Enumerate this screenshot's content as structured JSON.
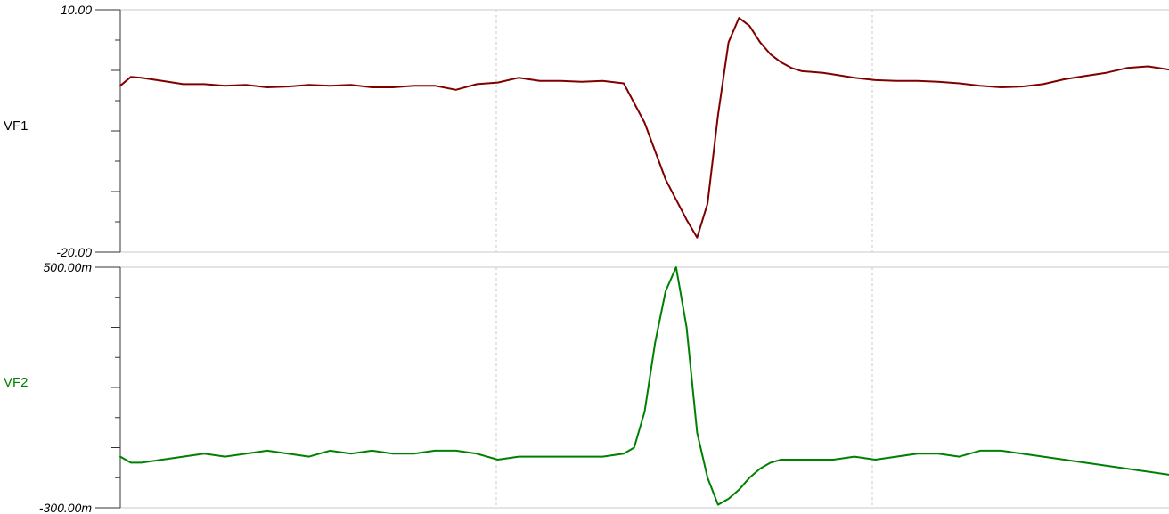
{
  "chart_data": [
    {
      "type": "line",
      "title": "",
      "series": [
        {
          "name": "VF1",
          "color": "#800000",
          "x": [
            0,
            1,
            2,
            4,
            6,
            8,
            10,
            12,
            14,
            16,
            18,
            20,
            22,
            24,
            26,
            28,
            30,
            32,
            34,
            36,
            38,
            40,
            42,
            44,
            46,
            48,
            50,
            52,
            54,
            55,
            56,
            57,
            58,
            59,
            60,
            61,
            62,
            63,
            64,
            65,
            66,
            67,
            68,
            70,
            72,
            74,
            76,
            78,
            80,
            82,
            84,
            86,
            88,
            90,
            92,
            94,
            96,
            98,
            100
          ],
          "values": [
            0.6,
            1.7,
            1.6,
            1.2,
            0.8,
            0.8,
            0.6,
            0.7,
            0.4,
            0.5,
            0.7,
            0.6,
            0.7,
            0.4,
            0.4,
            0.6,
            0.6,
            0.1,
            0.8,
            1.0,
            1.6,
            1.2,
            1.2,
            1.1,
            1.2,
            0.9,
            -4.0,
            -11.0,
            -16.0,
            -18.2,
            -14.0,
            -3.0,
            6.0,
            9.0,
            8.0,
            6.0,
            4.5,
            3.5,
            2.8,
            2.4,
            2.3,
            2.2,
            2.0,
            1.6,
            1.3,
            1.2,
            1.2,
            1.1,
            0.9,
            0.6,
            0.4,
            0.5,
            0.8,
            1.4,
            1.8,
            2.2,
            2.8,
            3.0,
            2.6
          ]
        }
      ],
      "ylim": [
        -20,
        10
      ],
      "ytick_labels": [
        "10.00",
        "-20.00"
      ],
      "grid": true
    },
    {
      "type": "line",
      "title": "",
      "series": [
        {
          "name": "VF2",
          "color": "#008000",
          "x": [
            0,
            1,
            2,
            4,
            6,
            8,
            10,
            12,
            14,
            16,
            18,
            20,
            22,
            24,
            26,
            28,
            30,
            32,
            34,
            36,
            38,
            40,
            42,
            44,
            46,
            48,
            49,
            50,
            51,
            52,
            53,
            54,
            55,
            56,
            57,
            58,
            59,
            60,
            61,
            62,
            63,
            64,
            66,
            68,
            70,
            72,
            74,
            76,
            78,
            80,
            82,
            84,
            86,
            88,
            90,
            92,
            94,
            96,
            98,
            100
          ],
          "values": [
            -0.13,
            -0.15,
            -0.15,
            -0.14,
            -0.13,
            -0.12,
            -0.13,
            -0.12,
            -0.11,
            -0.12,
            -0.13,
            -0.11,
            -0.12,
            -0.11,
            -0.12,
            -0.12,
            -0.11,
            -0.11,
            -0.12,
            -0.14,
            -0.13,
            -0.13,
            -0.13,
            -0.13,
            -0.13,
            -0.12,
            -0.1,
            0.02,
            0.25,
            0.42,
            0.5,
            0.3,
            -0.05,
            -0.2,
            -0.29,
            -0.27,
            -0.24,
            -0.2,
            -0.17,
            -0.15,
            -0.14,
            -0.14,
            -0.14,
            -0.14,
            -0.13,
            -0.14,
            -0.13,
            -0.12,
            -0.12,
            -0.13,
            -0.11,
            -0.11,
            -0.12,
            -0.13,
            -0.14,
            -0.15,
            -0.16,
            -0.17,
            -0.18,
            -0.19
          ]
        }
      ],
      "ylim": [
        -0.3,
        0.5
      ],
      "ytick_labels": [
        "500.00m",
        "-300.00m"
      ],
      "grid": true
    }
  ]
}
